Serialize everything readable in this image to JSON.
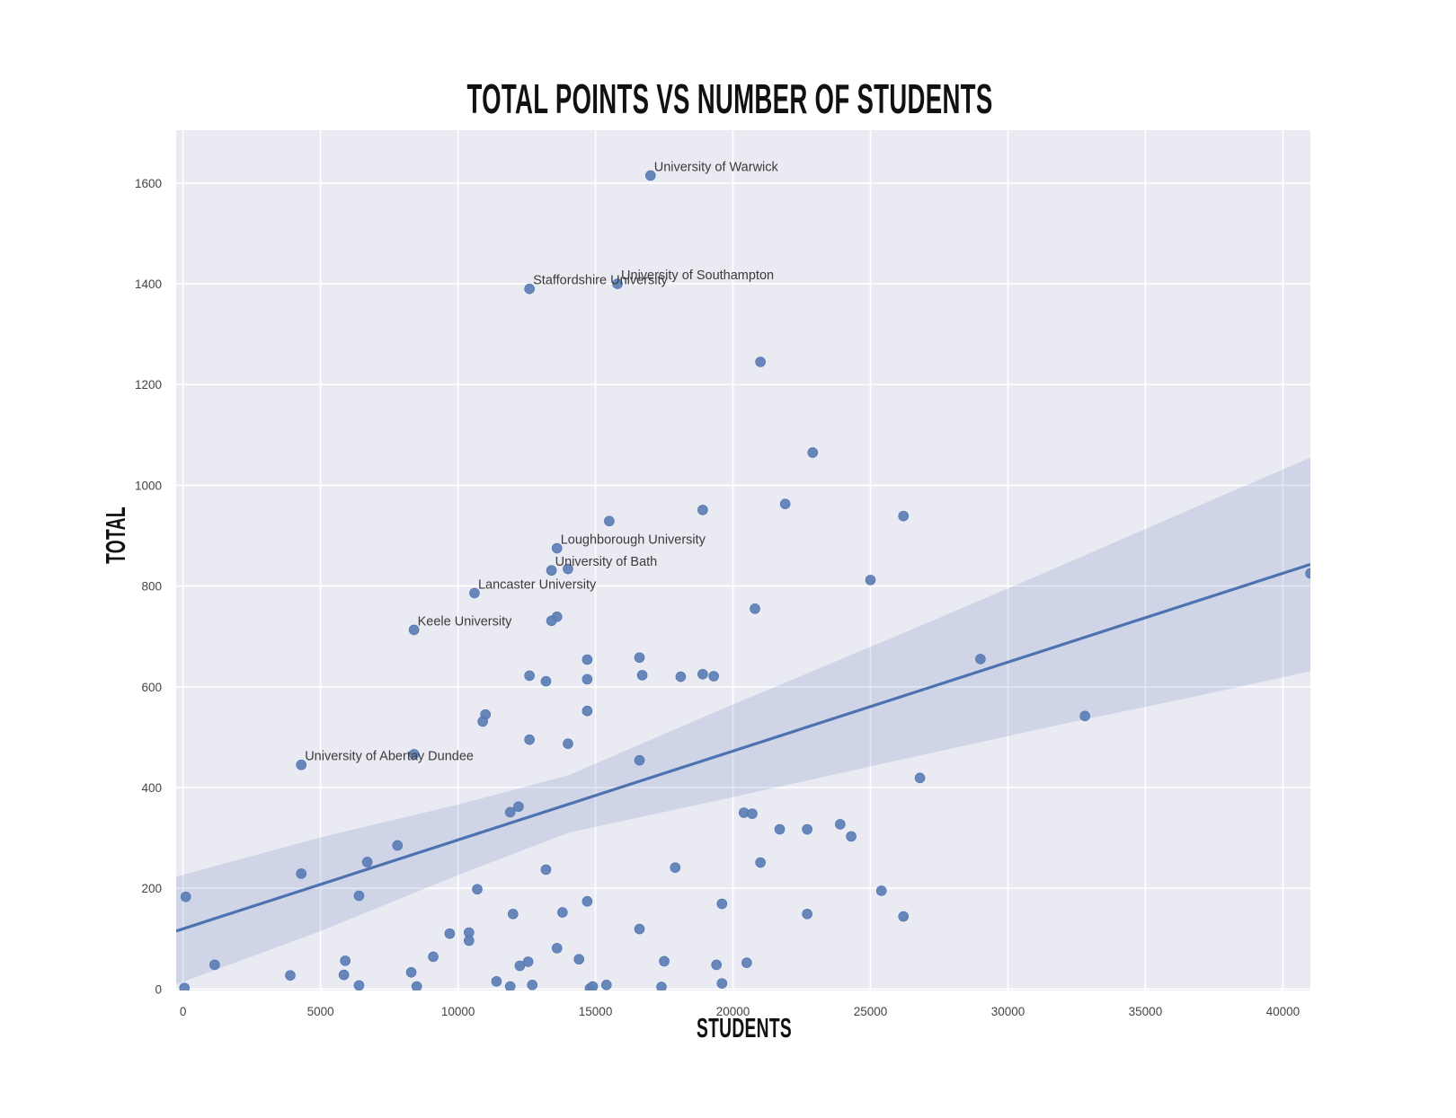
{
  "chart_data": {
    "type": "scatter",
    "title": "TOTAL POINTS VS NUMBER OF STUDENTS",
    "xlabel": "STUDENTS",
    "ylabel": "TOTAL",
    "xlim": [
      -250,
      41000
    ],
    "ylim": [
      -3,
      1705
    ],
    "xticks": [
      0,
      5000,
      10000,
      15000,
      20000,
      25000,
      30000,
      35000,
      40000
    ],
    "yticks": [
      0,
      200,
      400,
      600,
      800,
      1000,
      1200,
      1400,
      1600
    ],
    "grid": true,
    "legend": "none",
    "colors": {
      "background": "#eaeaf2",
      "grid": "#ffffff",
      "point": "#5c7fb6",
      "point_edge": "#4c72b0",
      "line": "#4c72b0",
      "band": "#4c72b0",
      "band_opacity": 0.17,
      "tick": "#444444",
      "annotation": "#3b3b3b",
      "text": "#111111"
    },
    "regression": {
      "x": [
        -250,
        41000
      ],
      "y": [
        115,
        843
      ]
    },
    "band": {
      "x": [
        -250,
        5000,
        10000,
        14000,
        20000,
        26000,
        32000,
        36500,
        41000
      ],
      "upper": [
        223,
        301,
        366,
        424,
        565,
        702,
        842,
        949,
        1055
      ],
      "lower": [
        9,
        115,
        226,
        310,
        381,
        454,
        526,
        577,
        631
      ]
    },
    "annotated_points": [
      {
        "label": "University of Warwick",
        "x": 17000,
        "y": 1615
      },
      {
        "label": "University of Southampton",
        "x": 15800,
        "y": 1400
      },
      {
        "label": "Staffordshire University",
        "x": 12600,
        "y": 1390
      },
      {
        "label": "Loughborough University",
        "x": 13600,
        "y": 875
      },
      {
        "label": "University of Bath",
        "x": 13400,
        "y": 831
      },
      {
        "label": "Lancaster University",
        "x": 10600,
        "y": 786
      },
      {
        "label": "Keele University",
        "x": 8400,
        "y": 713
      },
      {
        "label": "University of Abertay Dundee",
        "x": 4300,
        "y": 445
      }
    ],
    "points": [
      [
        21000,
        1245
      ],
      [
        22900,
        1065
      ],
      [
        21900,
        963
      ],
      [
        26200,
        939
      ],
      [
        18900,
        951
      ],
      [
        15500,
        929
      ],
      [
        25000,
        812
      ],
      [
        20800,
        755
      ],
      [
        14000,
        834
      ],
      [
        13600,
        739
      ],
      [
        13400,
        731
      ],
      [
        14700,
        654
      ],
      [
        16600,
        658
      ],
      [
        12600,
        622
      ],
      [
        13200,
        611
      ],
      [
        14700,
        615
      ],
      [
        16700,
        623
      ],
      [
        18100,
        620
      ],
      [
        18900,
        625
      ],
      [
        19300,
        621
      ],
      [
        29000,
        655
      ],
      [
        11000,
        545
      ],
      [
        10900,
        531
      ],
      [
        14700,
        552
      ],
      [
        32800,
        542
      ],
      [
        12600,
        495
      ],
      [
        14000,
        487
      ],
      [
        16600,
        454
      ],
      [
        8400,
        466
      ],
      [
        26800,
        419
      ],
      [
        11900,
        351
      ],
      [
        12200,
        362
      ],
      [
        20400,
        350
      ],
      [
        20700,
        348
      ],
      [
        21700,
        317
      ],
      [
        22700,
        317
      ],
      [
        23900,
        327
      ],
      [
        24300,
        303
      ],
      [
        7800,
        285
      ],
      [
        6700,
        252
      ],
      [
        4300,
        229
      ],
      [
        21000,
        251
      ],
      [
        17900,
        241
      ],
      [
        13200,
        237
      ],
      [
        6400,
        185
      ],
      [
        100,
        183
      ],
      [
        10700,
        198
      ],
      [
        25400,
        195
      ],
      [
        14700,
        174
      ],
      [
        19600,
        169
      ],
      [
        13800,
        152
      ],
      [
        22700,
        149
      ],
      [
        12000,
        149
      ],
      [
        16600,
        119
      ],
      [
        26200,
        144
      ],
      [
        9700,
        110
      ],
      [
        10400,
        112
      ],
      [
        10400,
        96
      ],
      [
        9100,
        64
      ],
      [
        5900,
        56
      ],
      [
        5850,
        28
      ],
      [
        1150,
        48
      ],
      [
        3900,
        27
      ],
      [
        8300,
        33
      ],
      [
        8500,
        5
      ],
      [
        6400,
        7
      ],
      [
        11400,
        15
      ],
      [
        11900,
        5
      ],
      [
        12250,
        46
      ],
      [
        12550,
        54
      ],
      [
        12700,
        8
      ],
      [
        13600,
        81
      ],
      [
        14400,
        59
      ],
      [
        17500,
        55
      ],
      [
        19400,
        48
      ],
      [
        20500,
        52
      ],
      [
        19600,
        11
      ],
      [
        17400,
        4
      ],
      [
        14800,
        1
      ],
      [
        14900,
        5
      ],
      [
        15400,
        8
      ],
      [
        41000,
        825
      ],
      [
        50,
        2
      ]
    ]
  }
}
